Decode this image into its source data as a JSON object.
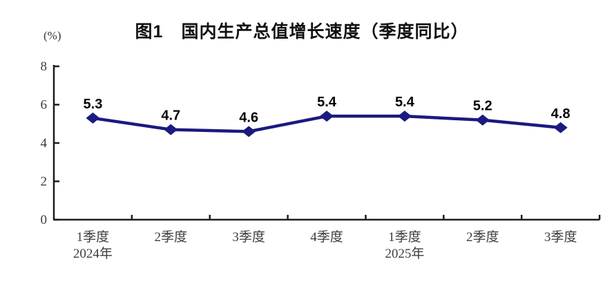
{
  "chart_data": {
    "type": "line",
    "title": "图1　国内生产总值增长速度（季度同比）",
    "unit": "(%)",
    "series_name": "国内生产总值增长速度（季度同比）",
    "categories": [
      "1季度",
      "2季度",
      "3季度",
      "4季度",
      "1季度",
      "2季度",
      "3季度"
    ],
    "category_sublabels": [
      "2024年",
      "",
      "",
      "",
      "2025年",
      "",
      ""
    ],
    "values": [
      5.3,
      4.7,
      4.6,
      5.4,
      5.4,
      5.2,
      4.8
    ],
    "data_labels": [
      "5.3",
      "4.7",
      "4.6",
      "5.4",
      "5.4",
      "5.2",
      "4.8"
    ],
    "ylim": [
      0,
      8
    ],
    "yticks": [
      0,
      2,
      4,
      6,
      8
    ],
    "marker": "diamond",
    "grid": false,
    "legend": "none",
    "colors": {
      "line": "#1a1a80",
      "axis": "#1c1c1c",
      "tick_label": "#3d3d3d",
      "data_label": "#000000",
      "background": "#ffffff"
    }
  }
}
